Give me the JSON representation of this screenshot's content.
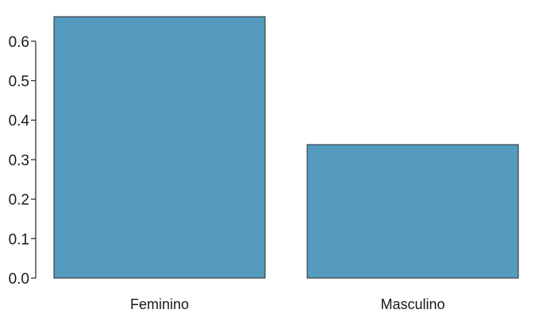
{
  "chart_data": {
    "type": "bar",
    "categories": [
      "Feminino",
      "Masculino"
    ],
    "values": [
      0.662,
      0.338
    ],
    "ylim": [
      0,
      0.662
    ],
    "yticks": [
      0.0,
      0.1,
      0.2,
      0.3,
      0.4,
      0.5,
      0.6
    ],
    "ytick_labels": [
      "0.0",
      "0.1",
      "0.2",
      "0.3",
      "0.4",
      "0.5",
      "0.6"
    ],
    "grid": false,
    "legend": "none",
    "bar_color": "#559ABF",
    "bar_edge_color": "#2B2B2B"
  }
}
